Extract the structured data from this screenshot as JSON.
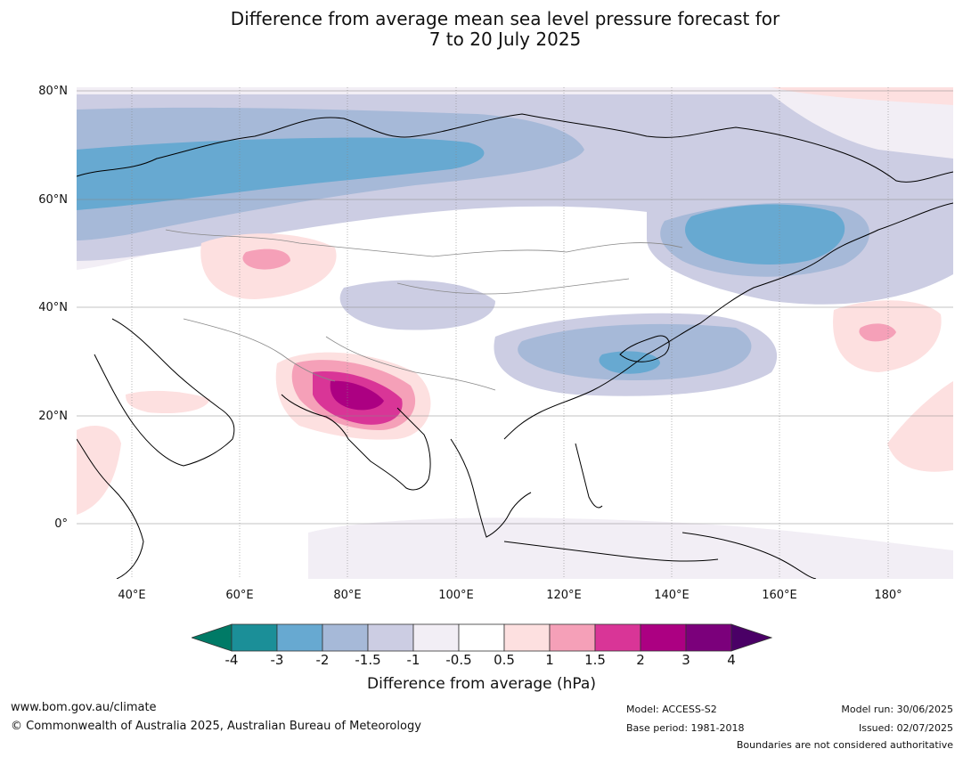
{
  "title": {
    "line1": "Difference from average mean sea level pressure forecast for",
    "line2": "7 to 20 July 2025"
  },
  "axes": {
    "lat_labels": [
      "80°N",
      "60°N",
      "40°N",
      "20°N",
      "0°"
    ],
    "lon_labels": [
      "40°E",
      "60°E",
      "80°E",
      "100°E",
      "120°E",
      "140°E",
      "160°E",
      "180°"
    ]
  },
  "colorbar": {
    "ticks": [
      "-4",
      "-3",
      "-2",
      "-1.5",
      "-1",
      "-0.5",
      "0.5",
      "1",
      "1.5",
      "2",
      "3",
      "4"
    ],
    "colors": [
      "#007a66",
      "#1b8f98",
      "#67a9d1",
      "#a6b9d8",
      "#cccde3",
      "#f2eef5",
      "#ffffff",
      "#fde0e0",
      "#f5a0b8",
      "#d93597",
      "#ac0082",
      "#7b007b",
      "#4a0066"
    ],
    "label": "Difference from average (hPa)"
  },
  "footer": {
    "website": "www.bom.gov.au/climate",
    "copyright": "© Commonwealth of Australia 2025, Australian Bureau of Meteorology",
    "model": "Model: ACCESS-S2",
    "base_period": "Base period: 1981-2018",
    "model_run": "Model run: 30/06/2025",
    "issued": "Issued: 02/07/2025",
    "disclaimer": "Boundaries are not considered authoritative"
  }
}
